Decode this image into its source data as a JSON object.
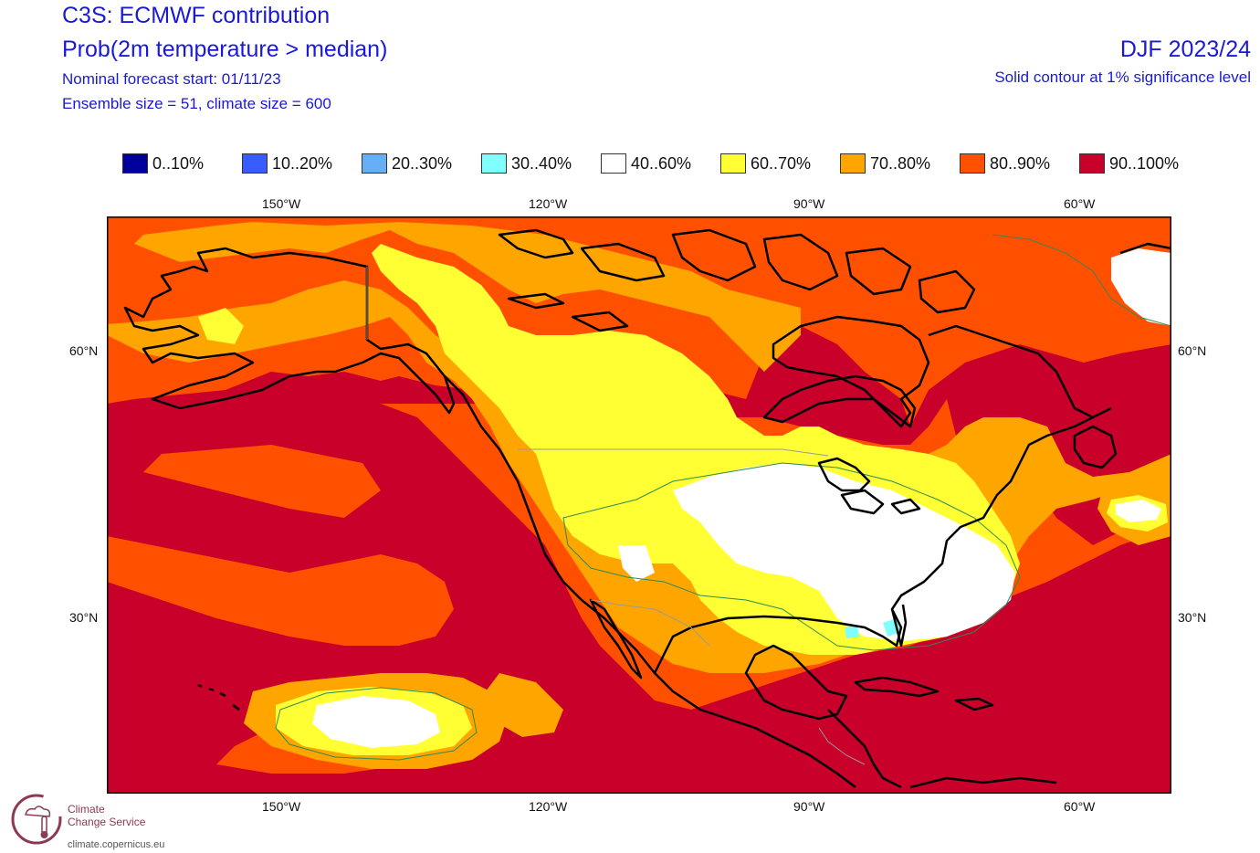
{
  "header": {
    "title": "C3S: ECMWF contribution",
    "variable": "Prob(2m temperature > median)",
    "start": "Nominal forecast start: 01/11/23",
    "ensemble": "Ensemble size = 51, climate size = 600",
    "season": "DJF 2023/24",
    "significance": "Solid contour at 1% significance level"
  },
  "legend": [
    {
      "label": "0..10%",
      "color": "#00009c"
    },
    {
      "label": "10..20%",
      "color": "#3a5cff"
    },
    {
      "label": "20..30%",
      "color": "#66aef5"
    },
    {
      "label": "30..40%",
      "color": "#80ffff"
    },
    {
      "label": "40..60%",
      "color": "#ffffff"
    },
    {
      "label": "60..70%",
      "color": "#ffff33"
    },
    {
      "label": "70..80%",
      "color": "#ffa500"
    },
    {
      "label": "80..90%",
      "color": "#ff5000"
    },
    {
      "label": "90..100%",
      "color": "#c8002a"
    }
  ],
  "axes": {
    "lon_top": [
      "150°W",
      "120°W",
      "90°W",
      "60°W"
    ],
    "lon_bottom": [
      "150°W",
      "120°W",
      "90°W",
      "60°W"
    ],
    "lat_left": [
      "60°N",
      "30°N"
    ],
    "lat_right": [
      "60°N",
      "30°N"
    ]
  },
  "logo": {
    "line1": "Climate",
    "line2": "Change Service",
    "url": "climate.copernicus.eu"
  }
}
